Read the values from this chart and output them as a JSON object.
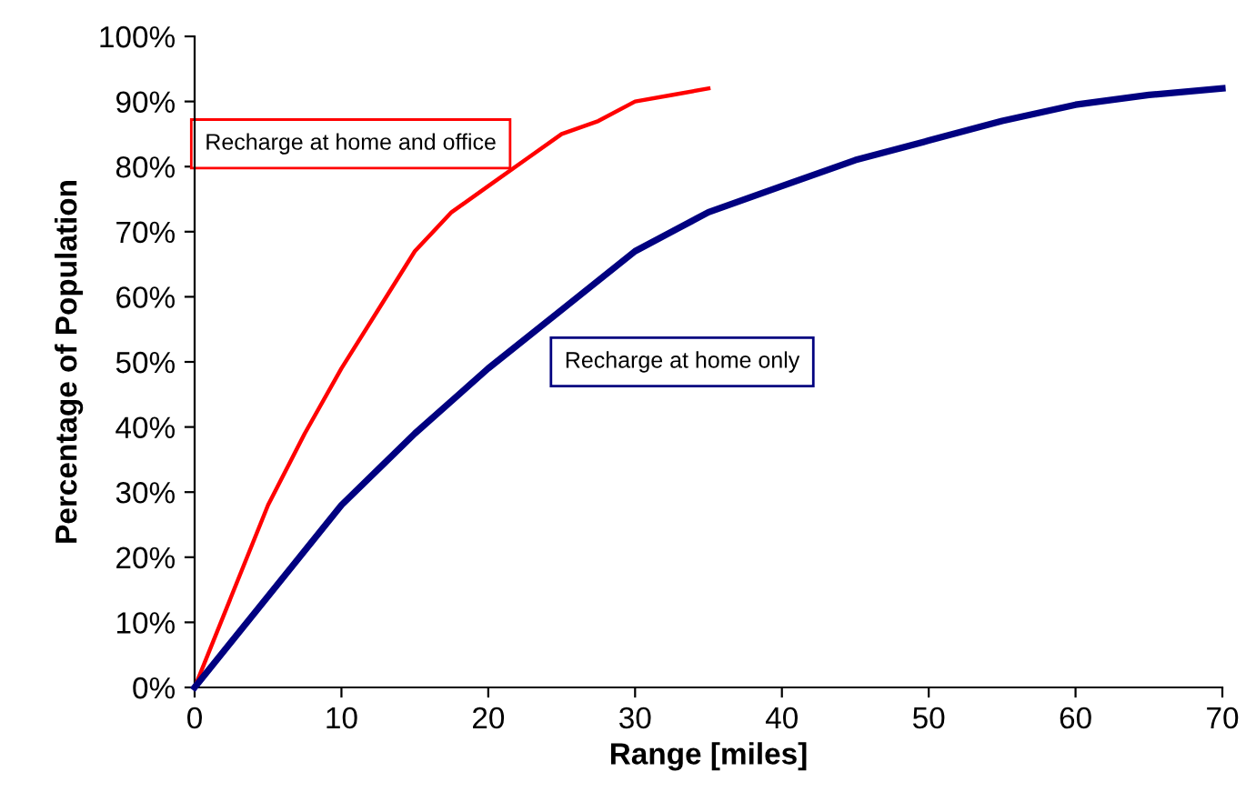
{
  "chart_data": {
    "type": "line",
    "xlabel": "Range [miles]",
    "ylabel": "Percentage of Population",
    "xlim": [
      0,
      70
    ],
    "xticks": [
      0,
      10,
      20,
      30,
      40,
      50,
      60,
      70
    ],
    "ylim": [
      0,
      100
    ],
    "yticks": [
      {
        "value": 0,
        "label": "0%"
      },
      {
        "value": 10,
        "label": "10%"
      },
      {
        "value": 20,
        "label": "20%"
      },
      {
        "value": 30,
        "label": "30%"
      },
      {
        "value": 40,
        "label": "40%"
      },
      {
        "value": 50,
        "label": "50%"
      },
      {
        "value": 60,
        "label": "60%"
      },
      {
        "value": 70,
        "label": "70%"
      },
      {
        "value": 80,
        "label": "80%"
      },
      {
        "value": 90,
        "label": "90%"
      },
      {
        "value": 100,
        "label": "100%"
      }
    ],
    "grid": false,
    "legend": false,
    "marker": "none",
    "line_style": "solid",
    "series": [
      {
        "name": "Recharge at home and office",
        "color": "#ff0000",
        "x": [
          0,
          2.5,
          5,
          7.5,
          10,
          12.5,
          15,
          17.5,
          20,
          22.5,
          25,
          27.5,
          30,
          32.5,
          35
        ],
        "values": [
          0,
          14,
          28,
          39,
          49,
          58,
          67,
          73,
          77,
          81,
          85,
          87,
          90,
          91,
          92
        ]
      },
      {
        "name": "Recharge at home only",
        "color": "#000080",
        "x": [
          0,
          5,
          10,
          15,
          20,
          25,
          30,
          35,
          40,
          45,
          50,
          55,
          60,
          65,
          70
        ],
        "values": [
          0,
          14,
          28,
          39,
          49,
          58,
          67,
          73,
          77,
          81,
          84,
          87,
          89.5,
          91,
          92
        ]
      }
    ]
  }
}
